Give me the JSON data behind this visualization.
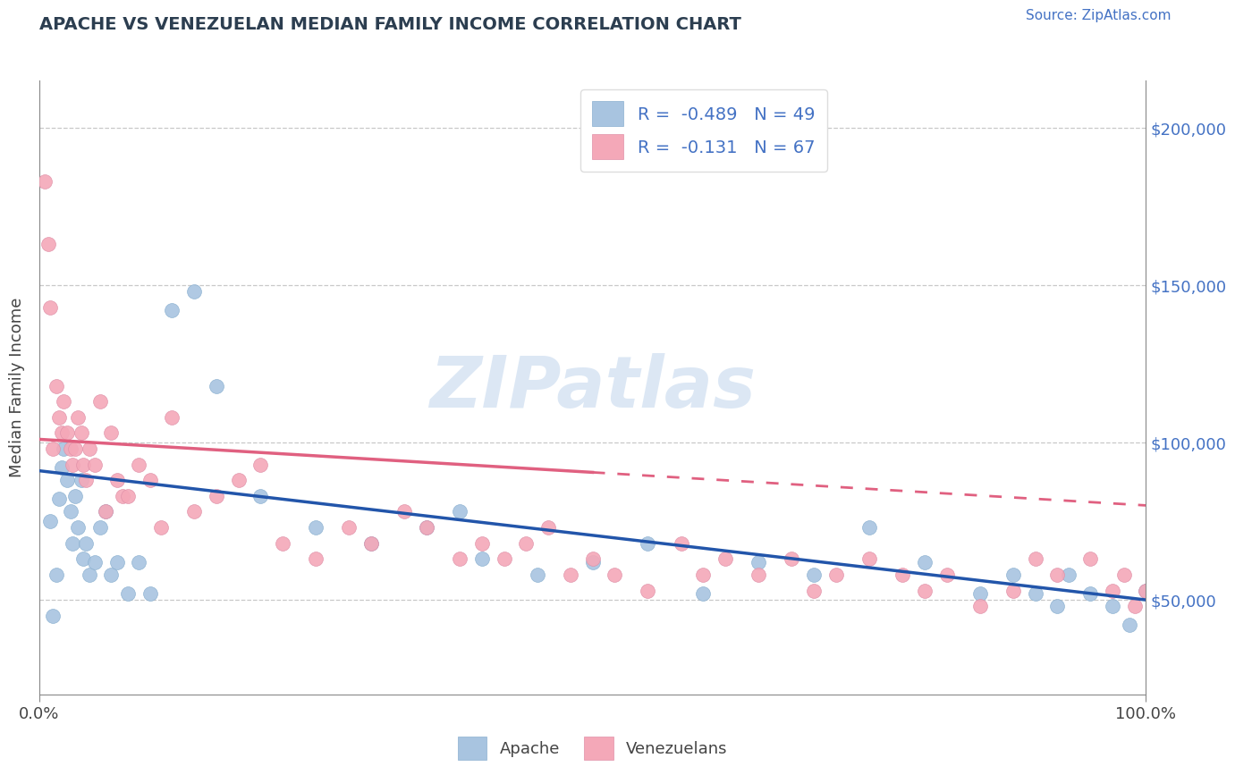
{
  "title": "APACHE VS VENEZUELAN MEDIAN FAMILY INCOME CORRELATION CHART",
  "source_text": "Source: ZipAtlas.com",
  "ylabel": "Median Family Income",
  "xlim": [
    0,
    100
  ],
  "ylim": [
    20000,
    215000
  ],
  "xticks": [
    0,
    100
  ],
  "xticklabels": [
    "0.0%",
    "100.0%"
  ],
  "yticks": [
    50000,
    100000,
    150000,
    200000
  ],
  "yticklabels": [
    "$50,000",
    "$100,000",
    "$150,000",
    "$200,000"
  ],
  "apache_R": -0.489,
  "apache_N": 49,
  "venezuelan_R": -0.131,
  "venezuelan_N": 67,
  "apache_color": "#a8c4e0",
  "venezuelan_color": "#f4a8b8",
  "apache_line_color": "#2255aa",
  "venezuelan_line_color": "#e06080",
  "watermark_text": "ZIPatlas",
  "watermark_color_zip": "#c5d8ee",
  "watermark_color_atlas": "#c5d8ee",
  "legend_labels": [
    "Apache",
    "Venezuelans"
  ],
  "apache_x": [
    1.0,
    1.2,
    1.5,
    1.8,
    2.0,
    2.2,
    2.5,
    2.8,
    3.0,
    3.2,
    3.5,
    3.8,
    4.0,
    4.2,
    4.5,
    5.0,
    5.5,
    6.0,
    6.5,
    7.0,
    8.0,
    9.0,
    10.0,
    12.0,
    14.0,
    16.0,
    20.0,
    25.0,
    30.0,
    35.0,
    38.0,
    40.0,
    45.0,
    50.0,
    55.0,
    60.0,
    65.0,
    70.0,
    75.0,
    80.0,
    85.0,
    88.0,
    90.0,
    92.0,
    93.0,
    95.0,
    97.0,
    98.5,
    100.0
  ],
  "apache_y": [
    75000,
    45000,
    58000,
    82000,
    92000,
    98000,
    88000,
    78000,
    68000,
    83000,
    73000,
    88000,
    63000,
    68000,
    58000,
    62000,
    73000,
    78000,
    58000,
    62000,
    52000,
    62000,
    52000,
    142000,
    148000,
    118000,
    83000,
    73000,
    68000,
    73000,
    78000,
    63000,
    58000,
    62000,
    68000,
    52000,
    62000,
    58000,
    73000,
    62000,
    52000,
    58000,
    52000,
    48000,
    58000,
    52000,
    48000,
    42000,
    53000
  ],
  "venezuelan_x": [
    0.5,
    0.8,
    1.0,
    1.2,
    1.5,
    1.8,
    2.0,
    2.2,
    2.5,
    2.8,
    3.0,
    3.2,
    3.5,
    3.8,
    4.0,
    4.2,
    4.5,
    5.0,
    5.5,
    6.0,
    6.5,
    7.0,
    7.5,
    8.0,
    9.0,
    10.0,
    11.0,
    12.0,
    14.0,
    16.0,
    18.0,
    20.0,
    22.0,
    25.0,
    28.0,
    30.0,
    33.0,
    35.0,
    38.0,
    40.0,
    42.0,
    44.0,
    46.0,
    48.0,
    50.0,
    52.0,
    55.0,
    58.0,
    60.0,
    62.0,
    65.0,
    68.0,
    70.0,
    72.0,
    75.0,
    78.0,
    80.0,
    82.0,
    85.0,
    88.0,
    90.0,
    92.0,
    95.0,
    97.0,
    98.0,
    99.0,
    100.0
  ],
  "venezuelan_y": [
    183000,
    163000,
    143000,
    98000,
    118000,
    108000,
    103000,
    113000,
    103000,
    98000,
    93000,
    98000,
    108000,
    103000,
    93000,
    88000,
    98000,
    93000,
    113000,
    78000,
    103000,
    88000,
    83000,
    83000,
    93000,
    88000,
    73000,
    108000,
    78000,
    83000,
    88000,
    93000,
    68000,
    63000,
    73000,
    68000,
    78000,
    73000,
    63000,
    68000,
    63000,
    68000,
    73000,
    58000,
    63000,
    58000,
    53000,
    68000,
    58000,
    63000,
    58000,
    63000,
    53000,
    58000,
    63000,
    58000,
    53000,
    58000,
    48000,
    53000,
    63000,
    58000,
    63000,
    53000,
    58000,
    48000,
    53000
  ],
  "apache_line_x0": 0,
  "apache_line_x1": 100,
  "apache_line_y0": 91000,
  "apache_line_y1": 50000,
  "venezuelan_line_x0": 0,
  "venezuelan_solid_x1": 50,
  "venezuelan_line_x1": 100,
  "venezuelan_line_y0": 101000,
  "venezuelan_line_y1": 80000
}
